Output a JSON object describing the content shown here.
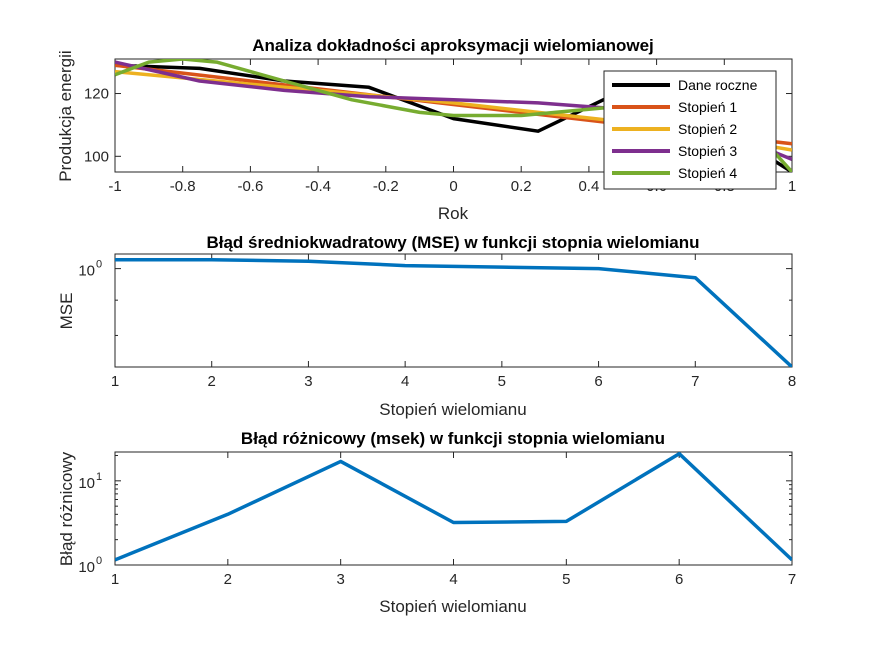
{
  "chart_data": [
    {
      "type": "line",
      "title": "Analiza dokładności aproksymacji wielomianowej",
      "xlabel": "Rok",
      "ylabel": "Produkcja energii",
      "xlim": [
        -1,
        1
      ],
      "ylim": [
        95,
        131
      ],
      "xticks": [
        "-1",
        "-0.8",
        "-0.6",
        "-0.4",
        "-0.2",
        "0",
        "0.2",
        "0.4",
        "0.6",
        "0.8",
        "1"
      ],
      "yticks": [
        "100",
        "120"
      ],
      "legend": "top-right",
      "series": [
        {
          "name": "Dane roczne",
          "color": "#000000",
          "x": [
            -1,
            -0.75,
            -0.5,
            -0.25,
            0,
            0.25,
            0.5,
            0.75,
            1
          ],
          "y": [
            129,
            128,
            124,
            122,
            112,
            108,
            121,
            112,
            95
          ]
        },
        {
          "name": "Stopień 1",
          "color": "#D95319",
          "x": [
            -1,
            1
          ],
          "y": [
            129,
            104
          ]
        },
        {
          "name": "Stopień 2",
          "color": "#EDB120",
          "x": [
            -1,
            -0.5,
            0,
            0.5,
            1
          ],
          "y": [
            127,
            122,
            117,
            111,
            102
          ]
        },
        {
          "name": "Stopień 3",
          "color": "#7E2F8E",
          "x": [
            -1,
            -0.75,
            -0.5,
            -0.25,
            0,
            0.25,
            0.5,
            0.75,
            1
          ],
          "y": [
            130,
            124,
            121,
            119,
            118,
            117,
            115,
            110,
            99
          ]
        },
        {
          "name": "Stopień 4",
          "color": "#77AC30",
          "x": [
            -1,
            -0.9,
            -0.8,
            -0.7,
            -0.6,
            -0.5,
            -0.4,
            -0.3,
            -0.2,
            -0.1,
            0,
            0.1,
            0.2,
            0.3,
            0.4,
            0.5,
            0.6,
            0.7,
            0.8,
            0.9,
            1
          ],
          "y": [
            126,
            130,
            131,
            130,
            127,
            124,
            121,
            118,
            116,
            114,
            113,
            113,
            113,
            114,
            115,
            116,
            117,
            116,
            113,
            107,
            95
          ]
        }
      ]
    },
    {
      "type": "line",
      "title": "Błąd średniokwadratowy (MSE) w funkcji stopnia wielomianu",
      "xlabel": "Stopień wielomianu",
      "ylabel": "MSE",
      "xlim": [
        1,
        8
      ],
      "yscale": "log",
      "ylim": [
        0.72,
        1.05
      ],
      "xticks": [
        "1",
        "2",
        "3",
        "4",
        "5",
        "6",
        "7",
        "8"
      ],
      "yticks": [
        {
          "base": "10",
          "exp": "0"
        }
      ],
      "series": [
        {
          "color": "#0072BD",
          "x": [
            1,
            2,
            3,
            4,
            5,
            6,
            7,
            8
          ],
          "y": [
            1.03,
            1.03,
            1.025,
            1.01,
            1.005,
            1.0,
            0.97,
            0.72
          ]
        }
      ]
    },
    {
      "type": "line",
      "title": "Błąd różnicowy (msek) w funkcji stopnia wielomianu",
      "xlabel": "Stopień wielomianu",
      "ylabel": "Błąd różnicowy",
      "xlim": [
        1,
        7
      ],
      "yscale": "log",
      "ylim": [
        1,
        22
      ],
      "xticks": [
        "1",
        "2",
        "3",
        "4",
        "5",
        "6",
        "7"
      ],
      "yticks": [
        {
          "base": "10",
          "exp": "0"
        },
        {
          "base": "10",
          "exp": "1"
        }
      ],
      "series": [
        {
          "color": "#0072BD",
          "x": [
            1,
            2,
            3,
            4,
            5,
            6,
            7
          ],
          "y": [
            1.15,
            4.0,
            17.0,
            3.2,
            3.3,
            21.0,
            1.15
          ]
        }
      ]
    }
  ]
}
